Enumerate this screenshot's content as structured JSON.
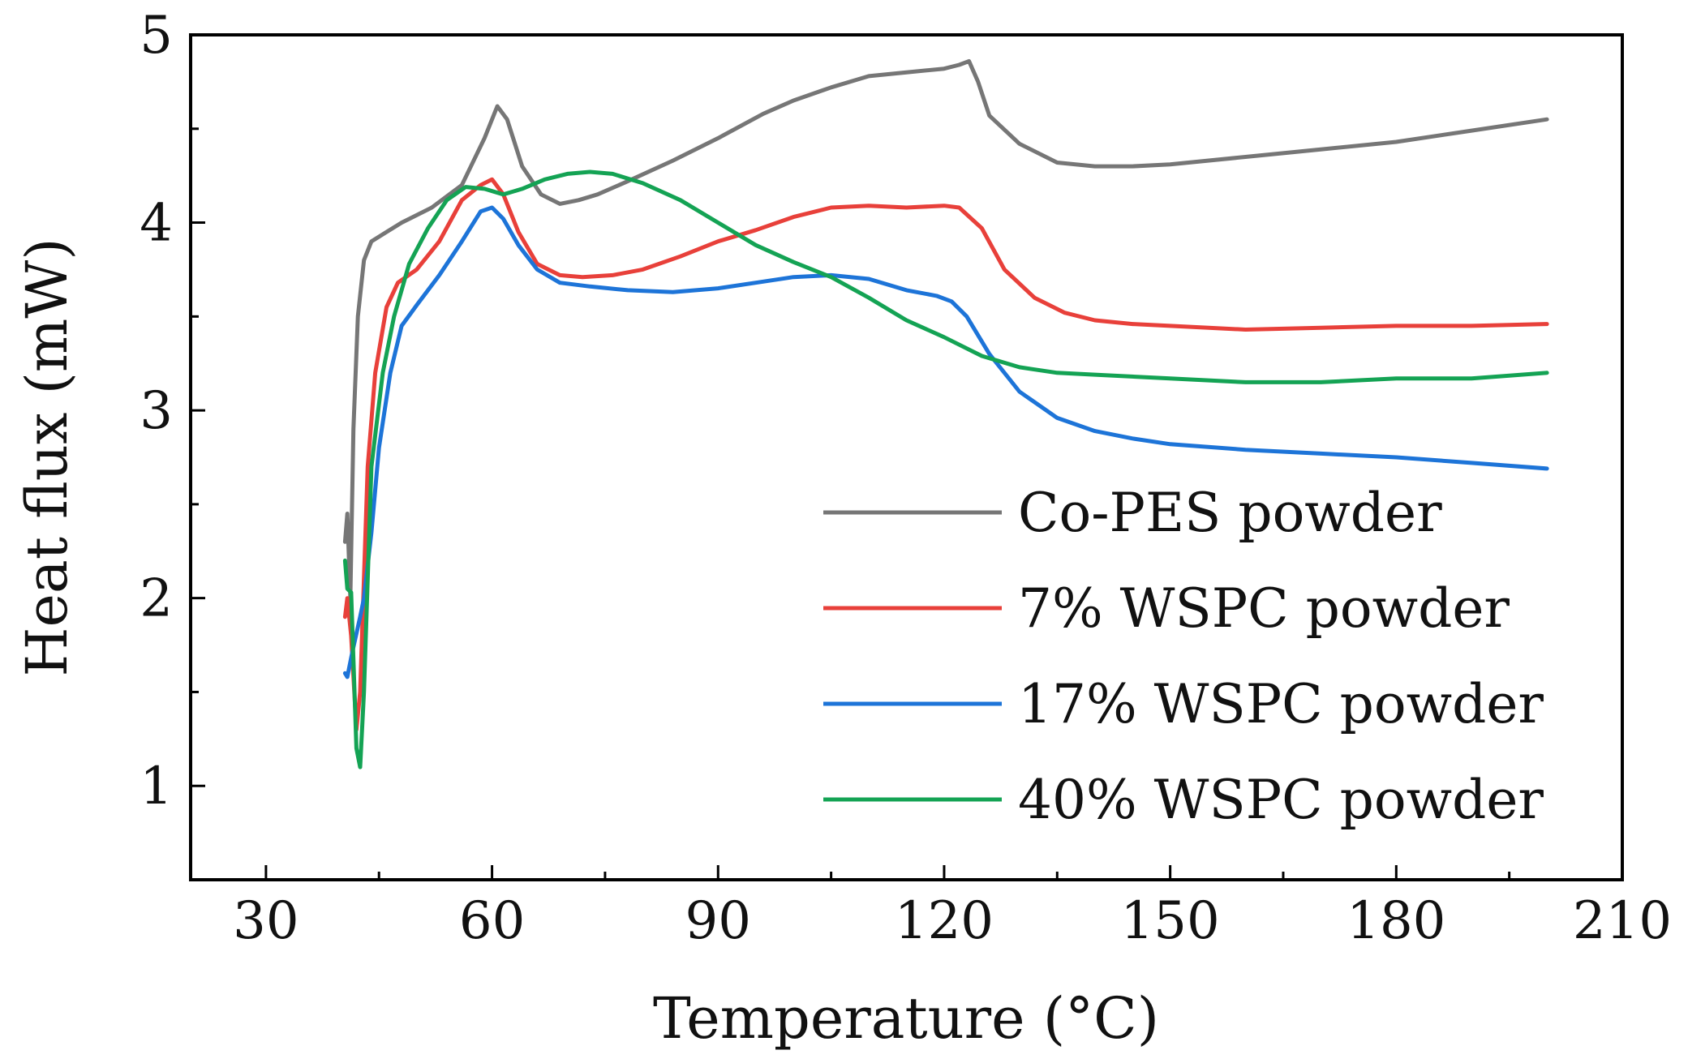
{
  "chart_data": {
    "type": "line",
    "title": "",
    "xlabel": "Temperature (°C)",
    "ylabel": "Heat flux (mW)",
    "xlim": [
      20,
      210
    ],
    "ylim": [
      0.5,
      5
    ],
    "xticks": [
      30,
      60,
      90,
      120,
      150,
      180,
      210
    ],
    "xtick_labels": [
      "30",
      "60",
      "90",
      "120",
      "150",
      "180",
      "210"
    ],
    "yticks": [
      1,
      2,
      3,
      4,
      5
    ],
    "ytick_labels": [
      "1",
      "2",
      "3",
      "4",
      "5"
    ],
    "legend_position": "bottom-right",
    "series": [
      {
        "name": "Co-PES powder",
        "color": "#767676",
        "x": [
          40.5,
          40.8,
          41.2,
          41.6,
          42.2,
          43,
          44,
          46,
          48,
          52,
          56,
          59,
          60.7,
          62,
          64,
          66.5,
          69,
          71.5,
          74,
          78,
          84,
          90,
          96,
          100,
          105,
          110,
          115,
          120,
          122,
          123.3,
          124.5,
          126,
          130,
          135,
          140,
          145,
          150,
          160,
          170,
          180,
          190,
          200
        ],
        "y": [
          2.3,
          2.45,
          2.0,
          2.9,
          3.5,
          3.8,
          3.9,
          3.95,
          4.0,
          4.08,
          4.2,
          4.45,
          4.62,
          4.55,
          4.3,
          4.15,
          4.1,
          4.12,
          4.15,
          4.22,
          4.33,
          4.45,
          4.58,
          4.65,
          4.72,
          4.78,
          4.8,
          4.82,
          4.84,
          4.86,
          4.75,
          4.57,
          4.42,
          4.32,
          4.3,
          4.3,
          4.31,
          4.35,
          4.39,
          4.43,
          4.49,
          4.55
        ]
      },
      {
        "name": "7% WSPC powder",
        "color": "#e8403a",
        "x": [
          40.5,
          40.8,
          41.3,
          42,
          42.5,
          43.5,
          44.5,
          46,
          47.5,
          50,
          53,
          56,
          58.5,
          60,
          61.5,
          63.5,
          66,
          69,
          72,
          76,
          80,
          85,
          90,
          95,
          100,
          105,
          110,
          115,
          120,
          122,
          125,
          128,
          132,
          136,
          140,
          145,
          150,
          160,
          170,
          180,
          190,
          200
        ],
        "y": [
          1.9,
          2.0,
          1.8,
          1.3,
          1.5,
          2.7,
          3.2,
          3.55,
          3.68,
          3.75,
          3.9,
          4.12,
          4.2,
          4.23,
          4.15,
          3.95,
          3.78,
          3.72,
          3.71,
          3.72,
          3.75,
          3.82,
          3.9,
          3.96,
          4.03,
          4.08,
          4.09,
          4.08,
          4.09,
          4.08,
          3.97,
          3.75,
          3.6,
          3.52,
          3.48,
          3.46,
          3.45,
          3.43,
          3.44,
          3.45,
          3.45,
          3.46
        ]
      },
      {
        "name": "17% WSPC powder",
        "color": "#1d74d8",
        "x": [
          40.5,
          40.8,
          41.5,
          42.5,
          43,
          44,
          45,
          46.5,
          48,
          50,
          53,
          56,
          58.5,
          60,
          61.5,
          63.5,
          66,
          69,
          73,
          78,
          84,
          90,
          95,
          100,
          105,
          110,
          115,
          119,
          121,
          123,
          126,
          130,
          135,
          140,
          145,
          150,
          160,
          170,
          180,
          190,
          200
        ],
        "y": [
          1.6,
          1.58,
          1.72,
          1.9,
          2.0,
          2.35,
          2.8,
          3.2,
          3.45,
          3.56,
          3.72,
          3.9,
          4.06,
          4.08,
          4.02,
          3.88,
          3.75,
          3.68,
          3.66,
          3.64,
          3.63,
          3.65,
          3.68,
          3.71,
          3.72,
          3.7,
          3.64,
          3.61,
          3.58,
          3.5,
          3.3,
          3.1,
          2.96,
          2.89,
          2.85,
          2.82,
          2.79,
          2.77,
          2.75,
          2.72,
          2.69
        ]
      },
      {
        "name": "40% WSPC powder",
        "color": "#14a354",
        "x": [
          40.5,
          40.8,
          41.3,
          42,
          42.5,
          43,
          44,
          45.5,
          47,
          49,
          51.5,
          54,
          56.5,
          59,
          61.5,
          64,
          67,
          70,
          73,
          76,
          80,
          85,
          90,
          95,
          100,
          105,
          110,
          115,
          120,
          125,
          130,
          135,
          140,
          150,
          160,
          170,
          180,
          190,
          200
        ],
        "y": [
          2.2,
          2.05,
          2.03,
          1.2,
          1.1,
          1.5,
          2.7,
          3.2,
          3.5,
          3.78,
          3.97,
          4.12,
          4.19,
          4.18,
          4.15,
          4.18,
          4.23,
          4.26,
          4.27,
          4.26,
          4.21,
          4.12,
          4.0,
          3.88,
          3.79,
          3.71,
          3.6,
          3.48,
          3.39,
          3.29,
          3.23,
          3.2,
          3.19,
          3.17,
          3.15,
          3.15,
          3.17,
          3.17,
          3.2
        ]
      }
    ]
  }
}
